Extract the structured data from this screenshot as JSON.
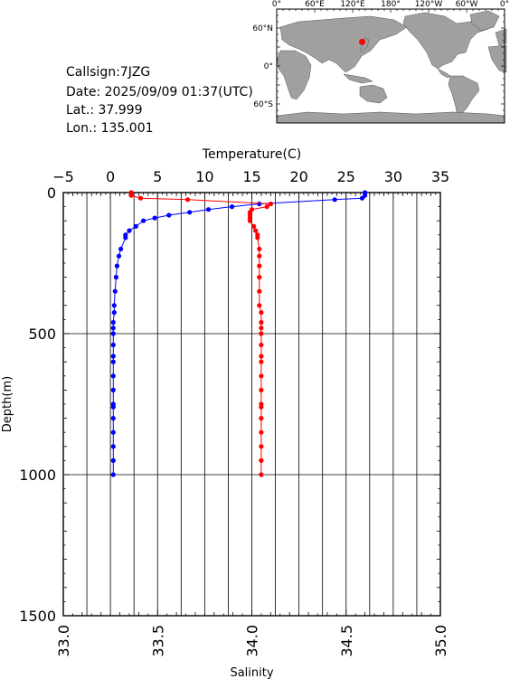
{
  "info": {
    "callsign": "Callsign:7JZG",
    "date": "Date:  2025/09/09 01:37(UTC)",
    "lat": "Lat.:  37.999",
    "lon": "Lon.:  135.001"
  },
  "map": {
    "top_tick_labels": [
      "0°",
      "60°E",
      "120°E",
      "180°",
      "120°W",
      "60°W",
      "0°"
    ],
    "left_tick_labels": [
      "60°N",
      "0°",
      "60°S"
    ],
    "marker_lon": 135.001,
    "marker_lat": 37.999,
    "marker_color": "#ff0000",
    "land_color": "#a0a0a0",
    "ocean_color": "#ffffff"
  },
  "chart_data": {
    "type": "line",
    "ylabel": "Depth(m)",
    "ylim": [
      1500,
      0
    ],
    "yticks": [
      0,
      500,
      1000,
      1500
    ],
    "temperature_axis": {
      "label": "Temperature(C)",
      "range": [
        -5,
        35
      ],
      "ticks": [
        -5,
        0,
        5,
        10,
        15,
        20,
        25,
        30,
        35
      ],
      "color": "#0000ff"
    },
    "salinity_axis": {
      "label": "Salinity",
      "range": [
        33.0,
        35.0
      ],
      "ticks": [
        "33.0",
        "33.5",
        "34.0",
        "34.5",
        "35.0"
      ],
      "color": "#ff0000"
    },
    "grid": true,
    "series": [
      {
        "axis": "temperature",
        "depth": [
          0,
          10,
          20,
          25,
          40,
          50,
          60,
          70,
          80,
          90,
          100,
          120,
          135,
          150,
          160,
          200,
          225,
          260,
          300,
          350,
          400,
          425,
          460,
          480,
          500,
          540,
          580,
          600,
          650,
          700,
          750,
          760,
          800,
          850,
          900,
          950,
          1000
        ],
        "values": [
          27.0,
          27.0,
          26.7,
          23.8,
          15.8,
          12.9,
          10.4,
          8.4,
          6.2,
          4.7,
          3.5,
          2.7,
          2.0,
          1.6,
          1.6,
          1.1,
          0.9,
          0.7,
          0.6,
          0.5,
          0.4,
          0.4,
          0.3,
          0.3,
          0.3,
          0.3,
          0.3,
          0.3,
          0.3,
          0.3,
          0.3,
          0.3,
          0.3,
          0.3,
          0.3,
          0.3,
          0.3
        ]
      },
      {
        "axis": "salinity",
        "depth": [
          0,
          10,
          20,
          25,
          40,
          50,
          60,
          70,
          80,
          90,
          100,
          120,
          135,
          150,
          160,
          200,
          225,
          260,
          300,
          350,
          400,
          425,
          460,
          480,
          500,
          540,
          580,
          600,
          650,
          700,
          750,
          760,
          800,
          850,
          900,
          950,
          1000
        ],
        "values": [
          33.36,
          33.36,
          33.41,
          33.66,
          34.1,
          34.08,
          34.0,
          33.99,
          33.99,
          33.99,
          33.99,
          34.01,
          34.02,
          34.03,
          34.03,
          34.04,
          34.04,
          34.04,
          34.04,
          34.04,
          34.04,
          34.05,
          34.05,
          34.05,
          34.05,
          34.05,
          34.05,
          34.05,
          34.05,
          34.05,
          34.05,
          34.05,
          34.05,
          34.05,
          34.05,
          34.05,
          34.05
        ]
      }
    ]
  }
}
